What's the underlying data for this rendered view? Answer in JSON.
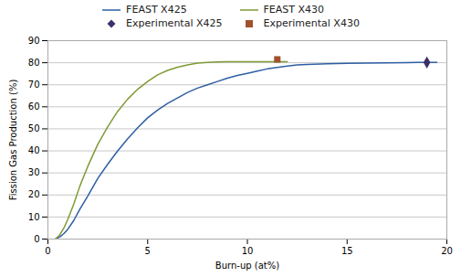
{
  "chart_data": {
    "type": "line",
    "xlabel": "Burn-up (at%)",
    "ylabel": "Fission Gas Production (%)",
    "xlim": [
      0,
      20
    ],
    "ylim": [
      0,
      90
    ],
    "xticks": [
      0,
      5,
      10,
      15,
      20
    ],
    "yticks": [
      0,
      10,
      20,
      30,
      40,
      50,
      60,
      70,
      80,
      90
    ],
    "grid": "y",
    "legend": "top",
    "series": [
      {
        "name": "FEAST X425",
        "type": "line",
        "color": "#2e5fa3",
        "x": [
          0.4,
          0.6,
          0.8,
          1.0,
          1.3,
          1.6,
          2.0,
          2.5,
          3.0,
          3.5,
          4.0,
          4.5,
          5.0,
          5.5,
          6.0,
          6.5,
          7.0,
          7.5,
          8.0,
          8.5,
          9.0,
          9.5,
          10.0,
          10.5,
          11.0,
          11.5,
          12.0,
          12.5,
          13.0,
          14.0,
          15.0,
          16.0,
          17.0,
          18.0,
          18.5,
          19.0,
          19.5
        ],
        "values": [
          0.2,
          1.0,
          2.5,
          4.5,
          8.5,
          13.5,
          19.5,
          27.5,
          34.0,
          40.0,
          45.5,
          50.5,
          55.0,
          58.5,
          61.5,
          64.0,
          66.5,
          68.5,
          70.0,
          71.5,
          73.0,
          74.2,
          75.2,
          76.2,
          77.2,
          77.9,
          78.5,
          79.0,
          79.2,
          79.5,
          79.7,
          79.8,
          79.9,
          80.0,
          80.1,
          80.1,
          80.1
        ]
      },
      {
        "name": "FEAST X430",
        "type": "line",
        "color": "#7f9a35",
        "x": [
          0.4,
          0.6,
          0.8,
          1.0,
          1.3,
          1.6,
          2.0,
          2.5,
          3.0,
          3.5,
          4.0,
          4.5,
          5.0,
          5.5,
          6.0,
          6.5,
          7.0,
          7.5,
          8.0,
          8.5,
          9.0,
          9.5,
          10.0,
          10.5,
          11.0,
          11.5,
          12.0
        ],
        "values": [
          0.2,
          2.0,
          5.0,
          9.0,
          16.0,
          24.0,
          33.0,
          43.0,
          51.0,
          58.0,
          63.5,
          68.0,
          71.5,
          74.5,
          76.5,
          78.0,
          79.0,
          79.8,
          80.2,
          80.4,
          80.5,
          80.5,
          80.5,
          80.5,
          80.5,
          80.5,
          80.5
        ]
      },
      {
        "name": "Experimental X425",
        "type": "scatter",
        "marker": "diamond",
        "color": "#3b3168",
        "x": [
          19.0
        ],
        "values": [
          80.1
        ]
      },
      {
        "name": "Experimental X430",
        "type": "scatter",
        "marker": "square",
        "color": "#a0522d",
        "x": [
          11.5
        ],
        "values": [
          81.5
        ]
      }
    ]
  }
}
